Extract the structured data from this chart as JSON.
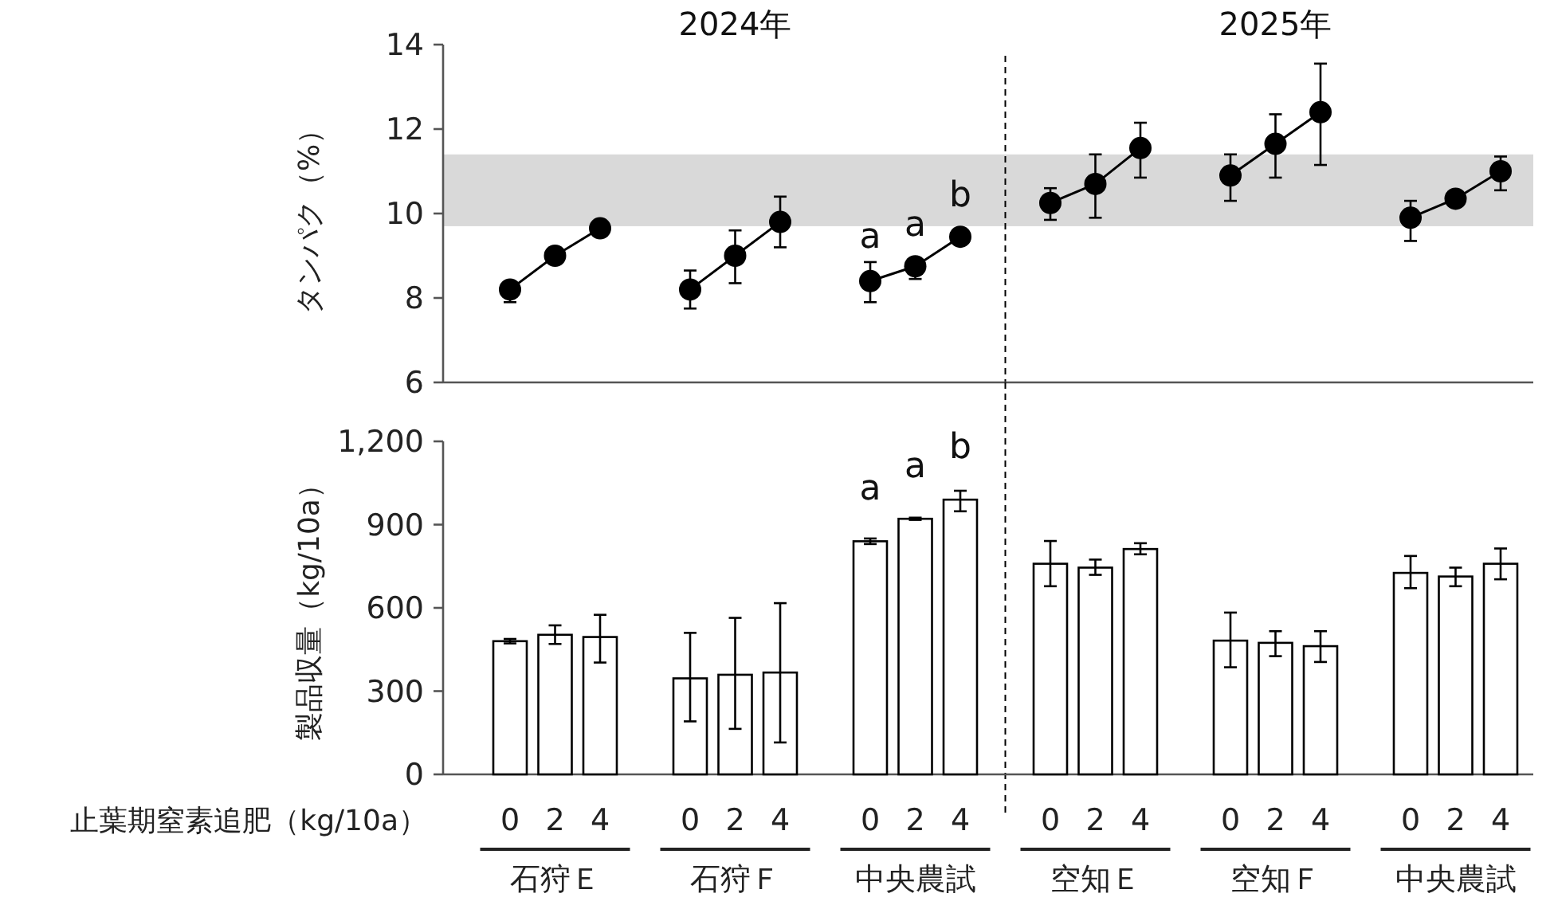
{
  "chart_data": [
    {
      "type": "line",
      "ylabel": "タンパク（%）",
      "categories": [
        "0",
        "2",
        "4",
        null,
        "0",
        "2",
        "4",
        null,
        "0",
        "2",
        "4",
        null,
        "0",
        "2",
        "4",
        null,
        "0",
        "2",
        "4",
        null,
        "0",
        "2",
        "4"
      ],
      "values": [
        8.2,
        9.0,
        9.65,
        null,
        8.2,
        9.0,
        9.8,
        null,
        8.4,
        8.75,
        9.45,
        null,
        10.25,
        10.7,
        11.55,
        null,
        10.9,
        11.65,
        12.4,
        null,
        9.9,
        10.35,
        11.0
      ],
      "errors": [
        [
          7.9,
          8.2
        ],
        null,
        null,
        null,
        [
          7.75,
          8.65
        ],
        [
          8.35,
          9.6
        ],
        [
          9.2,
          10.4
        ],
        null,
        [
          7.9,
          8.85
        ],
        [
          8.45,
          8.75
        ],
        null,
        null,
        [
          9.85,
          10.6
        ],
        [
          9.9,
          11.4
        ],
        [
          10.85,
          12.15
        ],
        null,
        [
          10.3,
          11.4
        ],
        [
          10.85,
          12.35
        ],
        [
          11.15,
          13.55
        ],
        null,
        [
          9.35,
          10.3
        ],
        null,
        [
          10.55,
          11.35
        ]
      ],
      "color": "#000000",
      "marker": "circle",
      "line_style": "solid",
      "ylim": [
        6,
        14
      ],
      "yticks": [
        6,
        8,
        10,
        12,
        14
      ],
      "tick_labels": "y",
      "bands": [
        {
          "axis": "y",
          "from": 9.7,
          "to": 11.4,
          "color": "#d9d9d9"
        }
      ],
      "annotations": [
        "2024年",
        "2025年",
        "a",
        "a",
        "b"
      ]
    },
    {
      "type": "bar",
      "ylabel": "製品収量（kg/10a）",
      "xlabel": "止葉期窒素追肥（kg/10a）",
      "categories": [
        "0",
        "2",
        "4",
        null,
        "0",
        "2",
        "4",
        null,
        "0",
        "2",
        "4",
        null,
        "0",
        "2",
        "4",
        null,
        "0",
        "2",
        "4",
        null,
        "0",
        "2",
        "4"
      ],
      "values": [
        480,
        503,
        495,
        null,
        346,
        359,
        367,
        null,
        840,
        921,
        990,
        null,
        759,
        745,
        812,
        null,
        482,
        474,
        462,
        null,
        726,
        713,
        759
      ],
      "errors": [
        [
          472,
          488
        ],
        [
          470,
          537
        ],
        [
          403,
          575
        ],
        null,
        [
          191,
          510
        ],
        [
          164,
          564
        ],
        [
          115,
          617
        ],
        null,
        [
          830,
          850
        ],
        [
          917,
          925
        ],
        [
          948,
          1022
        ],
        null,
        [
          678,
          841
        ],
        [
          719,
          774
        ],
        [
          793,
          833
        ],
        null,
        [
          386,
          583
        ],
        [
          426,
          516
        ],
        [
          405,
          516
        ],
        null,
        [
          671,
          787
        ],
        [
          678,
          745
        ],
        [
          703,
          814
        ]
      ],
      "color": "#ffffff",
      "ylim": [
        0,
        1200
      ],
      "yticks": [
        0,
        300,
        600,
        900,
        {
          "value": 1200,
          "label": "1,200"
        }
      ],
      "annotations": [
        "a",
        "a",
        "b",
        "石狩Ｅ",
        "石狩Ｆ",
        "中央農試",
        "空知Ｅ",
        "空知Ｆ",
        "中央農試"
      ]
    }
  ]
}
